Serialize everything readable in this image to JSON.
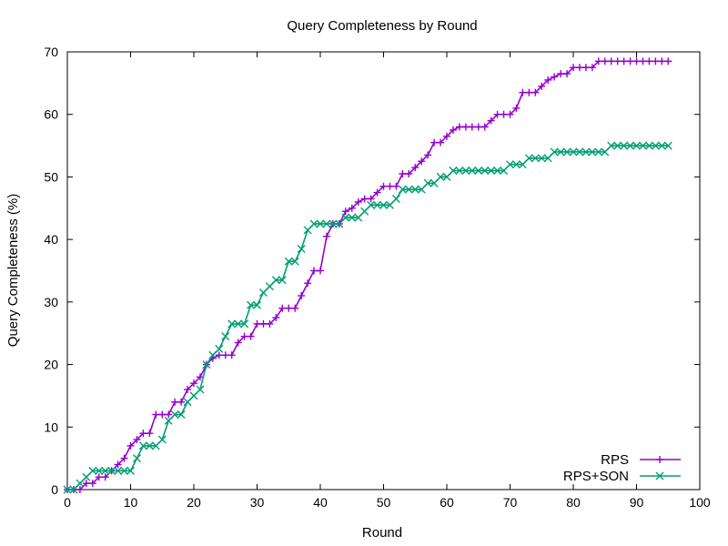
{
  "chart_data": {
    "type": "line",
    "title": "Query Completeness by Round",
    "xlabel": "Round",
    "ylabel": "Query Completeness (%)",
    "xlim": [
      0,
      100
    ],
    "ylim": [
      0,
      70
    ],
    "xticks": [
      0,
      10,
      20,
      30,
      40,
      50,
      60,
      70,
      80,
      90,
      100
    ],
    "yticks": [
      0,
      10,
      20,
      30,
      40,
      50,
      60,
      70
    ],
    "grid": false,
    "legend_position": "bottom-right",
    "series": [
      {
        "name": "RPS",
        "color": "#9400d3",
        "marker": "plus",
        "x": [
          0,
          1,
          2,
          3,
          4,
          5,
          6,
          7,
          8,
          9,
          10,
          11,
          12,
          13,
          14,
          15,
          16,
          17,
          18,
          19,
          20,
          21,
          22,
          23,
          24,
          25,
          26,
          27,
          28,
          29,
          30,
          31,
          32,
          33,
          34,
          35,
          36,
          37,
          38,
          39,
          40,
          41,
          42,
          43,
          44,
          45,
          46,
          47,
          48,
          49,
          50,
          51,
          52,
          53,
          54,
          55,
          56,
          57,
          58,
          59,
          60,
          61,
          62,
          63,
          64,
          65,
          66,
          67,
          68,
          69,
          70,
          71,
          72,
          73,
          74,
          75,
          76,
          77,
          78,
          79,
          80,
          81,
          82,
          83,
          84,
          85,
          86,
          87,
          88,
          89,
          90,
          91,
          92,
          93,
          94,
          95
        ],
        "y": [
          0,
          0,
          0,
          1,
          1,
          2,
          2,
          3,
          4,
          5,
          7,
          8,
          9,
          9,
          12,
          12,
          12,
          14,
          14,
          16,
          17,
          18,
          20,
          21,
          21.5,
          21.5,
          21.5,
          23.5,
          24.5,
          24.5,
          26.5,
          26.5,
          26.5,
          27.5,
          29,
          29,
          29,
          31,
          33,
          35,
          35,
          40.5,
          42.5,
          42.5,
          44.5,
          45,
          46,
          46.5,
          46.5,
          47.5,
          48.5,
          48.5,
          48.5,
          50.5,
          50.5,
          51.5,
          52.5,
          53.5,
          55.5,
          55.5,
          56.5,
          57.5,
          58,
          58,
          58,
          58,
          58,
          59,
          60,
          60,
          60,
          61,
          63.5,
          63.5,
          63.5,
          64.5,
          65.5,
          66,
          66.5,
          66.5,
          67.5,
          67.5,
          67.5,
          67.5,
          68.5,
          68.5,
          68.5,
          68.5,
          68.5,
          68.5,
          68.5,
          68.5,
          68.5,
          68.5,
          68.5,
          68.5
        ]
      },
      {
        "name": "RPS+SON",
        "color": "#009e73",
        "marker": "cross",
        "x": [
          0,
          1,
          2,
          3,
          4,
          5,
          6,
          7,
          8,
          9,
          10,
          11,
          12,
          13,
          14,
          15,
          16,
          17,
          18,
          19,
          20,
          21,
          22,
          23,
          24,
          25,
          26,
          27,
          28,
          29,
          30,
          31,
          32,
          33,
          34,
          35,
          36,
          37,
          38,
          39,
          40,
          41,
          42,
          43,
          44,
          45,
          46,
          47,
          48,
          49,
          50,
          51,
          52,
          53,
          54,
          55,
          56,
          57,
          58,
          59,
          60,
          61,
          62,
          63,
          64,
          65,
          66,
          67,
          68,
          69,
          70,
          71,
          72,
          73,
          74,
          75,
          76,
          77,
          78,
          79,
          80,
          81,
          82,
          83,
          84,
          85,
          86,
          87,
          88,
          89,
          90,
          91,
          92,
          93,
          94,
          95
        ],
        "y": [
          0,
          0,
          1,
          2,
          3,
          3,
          3,
          3,
          3,
          3,
          3,
          5,
          7,
          7,
          7,
          8,
          11,
          12,
          12,
          14,
          15,
          16,
          20,
          21.5,
          22.5,
          24.5,
          26.5,
          26.5,
          26.5,
          29.5,
          29.5,
          31.5,
          32.5,
          33.5,
          33.5,
          36.5,
          36.5,
          38.5,
          41.5,
          42.5,
          42.5,
          42.5,
          42.5,
          42.5,
          43.5,
          43.5,
          43.5,
          44.5,
          45.5,
          45.5,
          45.5,
          45.5,
          46.5,
          48,
          48,
          48,
          48,
          49,
          49,
          50,
          50,
          51,
          51,
          51,
          51,
          51,
          51,
          51,
          51,
          51,
          52,
          52,
          52,
          53,
          53,
          53,
          53,
          54,
          54,
          54,
          54,
          54,
          54,
          54,
          54,
          54,
          55,
          55,
          55,
          55,
          55,
          55,
          55,
          55,
          55,
          55
        ]
      }
    ]
  }
}
